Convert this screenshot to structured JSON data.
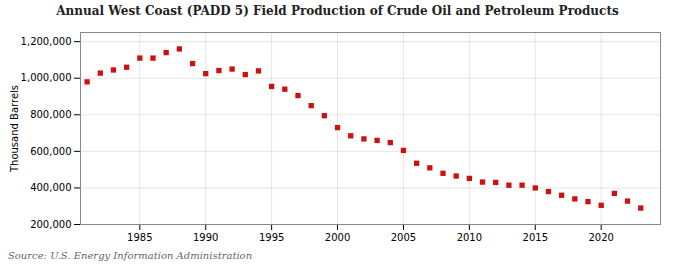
{
  "chart_data": {
    "type": "scatter",
    "title": "Annual West Coast (PADD 5) Field Production of Crude Oil and Petroleum Products",
    "ylabel": "Thousand Barrels",
    "caption": "Source: U.S. Energy Information Administration",
    "color": "#cc1111",
    "marker": "square",
    "grid": true,
    "xlim": [
      1980.5,
      2024.5
    ],
    "xticks": [
      1985,
      1990,
      1995,
      2000,
      2005,
      2010,
      2015,
      2020
    ],
    "ylim": [
      200000,
      1250000
    ],
    "yticks": [
      {
        "value": 200000,
        "label": "200,000"
      },
      {
        "value": 400000,
        "label": "400,000"
      },
      {
        "value": 600000,
        "label": "600,000"
      },
      {
        "value": 800000,
        "label": "800,000"
      },
      {
        "value": 1000000,
        "label": "1,000,000"
      },
      {
        "value": 1200000,
        "label": "1,200,000"
      }
    ],
    "x": [
      1981,
      1982,
      1983,
      1984,
      1985,
      1986,
      1987,
      1988,
      1989,
      1990,
      1991,
      1992,
      1993,
      1994,
      1995,
      1996,
      1997,
      1998,
      1999,
      2000,
      2001,
      2002,
      2003,
      2004,
      2005,
      2006,
      2007,
      2008,
      2009,
      2010,
      2011,
      2012,
      2013,
      2014,
      2015,
      2016,
      2017,
      2018,
      2019,
      2020,
      2021,
      2022,
      2023
    ],
    "values": [
      980000,
      1028000,
      1045000,
      1060000,
      1110000,
      1110000,
      1140000,
      1160000,
      1080000,
      1025000,
      1042000,
      1050000,
      1020000,
      1040000,
      955000,
      940000,
      905000,
      850000,
      795000,
      730000,
      685000,
      668000,
      660000,
      648000,
      605000,
      535000,
      510000,
      480000,
      465000,
      452000,
      432000,
      430000,
      415000,
      415000,
      400000,
      380000,
      360000,
      340000,
      325000,
      305000,
      370000,
      328000,
      290000
    ]
  }
}
